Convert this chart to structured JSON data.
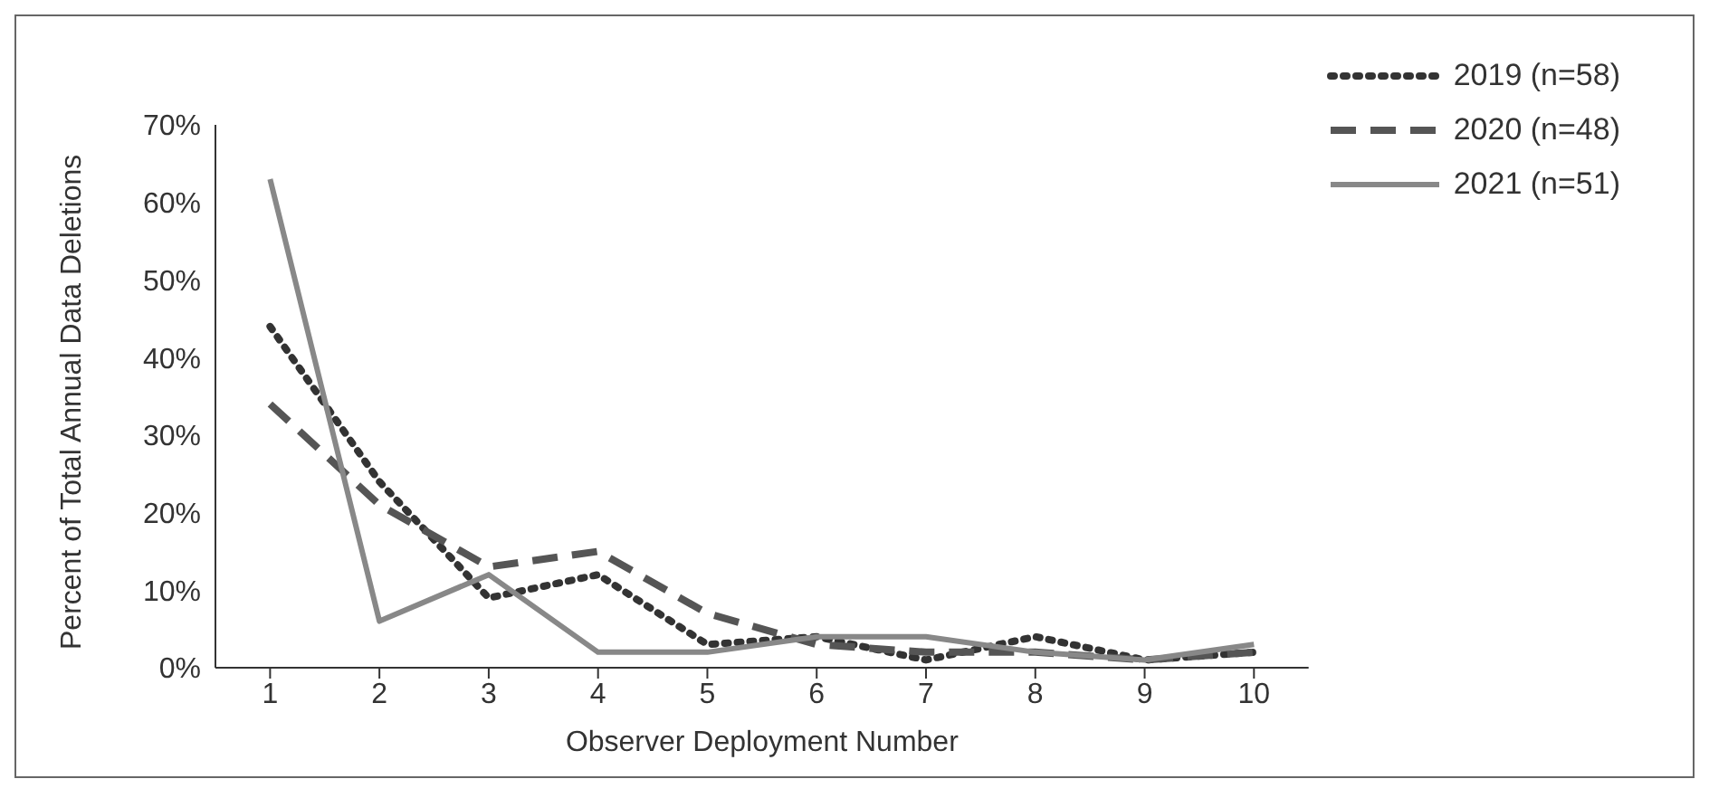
{
  "chart_data": {
    "type": "line",
    "xlabel": "Observer Deployment Number",
    "ylabel": "Percent of Total Annual Data Deletions",
    "categories": [
      "1",
      "2",
      "3",
      "4",
      "5",
      "6",
      "7",
      "8",
      "9",
      "10"
    ],
    "series": [
      {
        "name": "2019 (n=58)",
        "color": "#333333",
        "line_style": "dotted",
        "values": [
          44,
          24,
          9,
          12,
          3,
          4,
          1,
          4,
          1,
          2
        ]
      },
      {
        "name": "2020 (n=48)",
        "color": "#555555",
        "line_style": "dashed",
        "values": [
          34,
          21,
          13,
          15,
          7,
          3,
          2,
          2,
          1,
          2
        ]
      },
      {
        "name": "2021 (n=51)",
        "color": "#888888",
        "line_style": "solid",
        "values": [
          63,
          6,
          12,
          2,
          2,
          4,
          4,
          2,
          1,
          3
        ]
      }
    ],
    "ylim": [
      0,
      70
    ],
    "yticks": [
      {
        "value": 0,
        "label": "0%"
      },
      {
        "value": 10,
        "label": "10%"
      },
      {
        "value": 20,
        "label": "20%"
      },
      {
        "value": 30,
        "label": "30%"
      },
      {
        "value": 40,
        "label": "40%"
      },
      {
        "value": 50,
        "label": "50%"
      },
      {
        "value": 60,
        "label": "60%"
      },
      {
        "value": 70,
        "label": "70%"
      }
    ],
    "grid": false,
    "legend": "top right",
    "marker": "none"
  }
}
